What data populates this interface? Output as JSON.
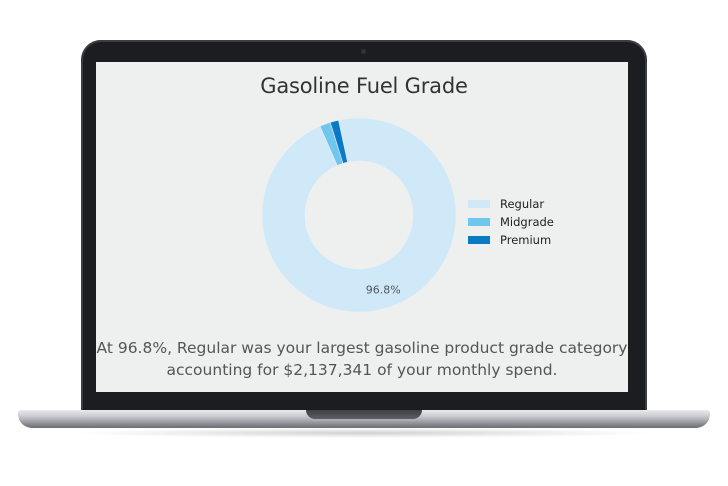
{
  "chart_data": {
    "type": "pie",
    "donut": true,
    "title": "Gasoline Fuel Grade",
    "categories": [
      "Regular",
      "Midgrade",
      "Premium"
    ],
    "values": [
      96.8,
      1.8,
      1.4
    ],
    "unit": "%",
    "colors": [
      "#cfe9f9",
      "#6fc6ef",
      "#0a7ac4"
    ],
    "data_labels": [
      "96.8%",
      "",
      ""
    ],
    "legend": "right"
  },
  "caption": {
    "line1": "At 96.8%, Regular was your largest gasoline product grade category",
    "line2": "accounting for $2,137,341 of your monthly spend."
  }
}
